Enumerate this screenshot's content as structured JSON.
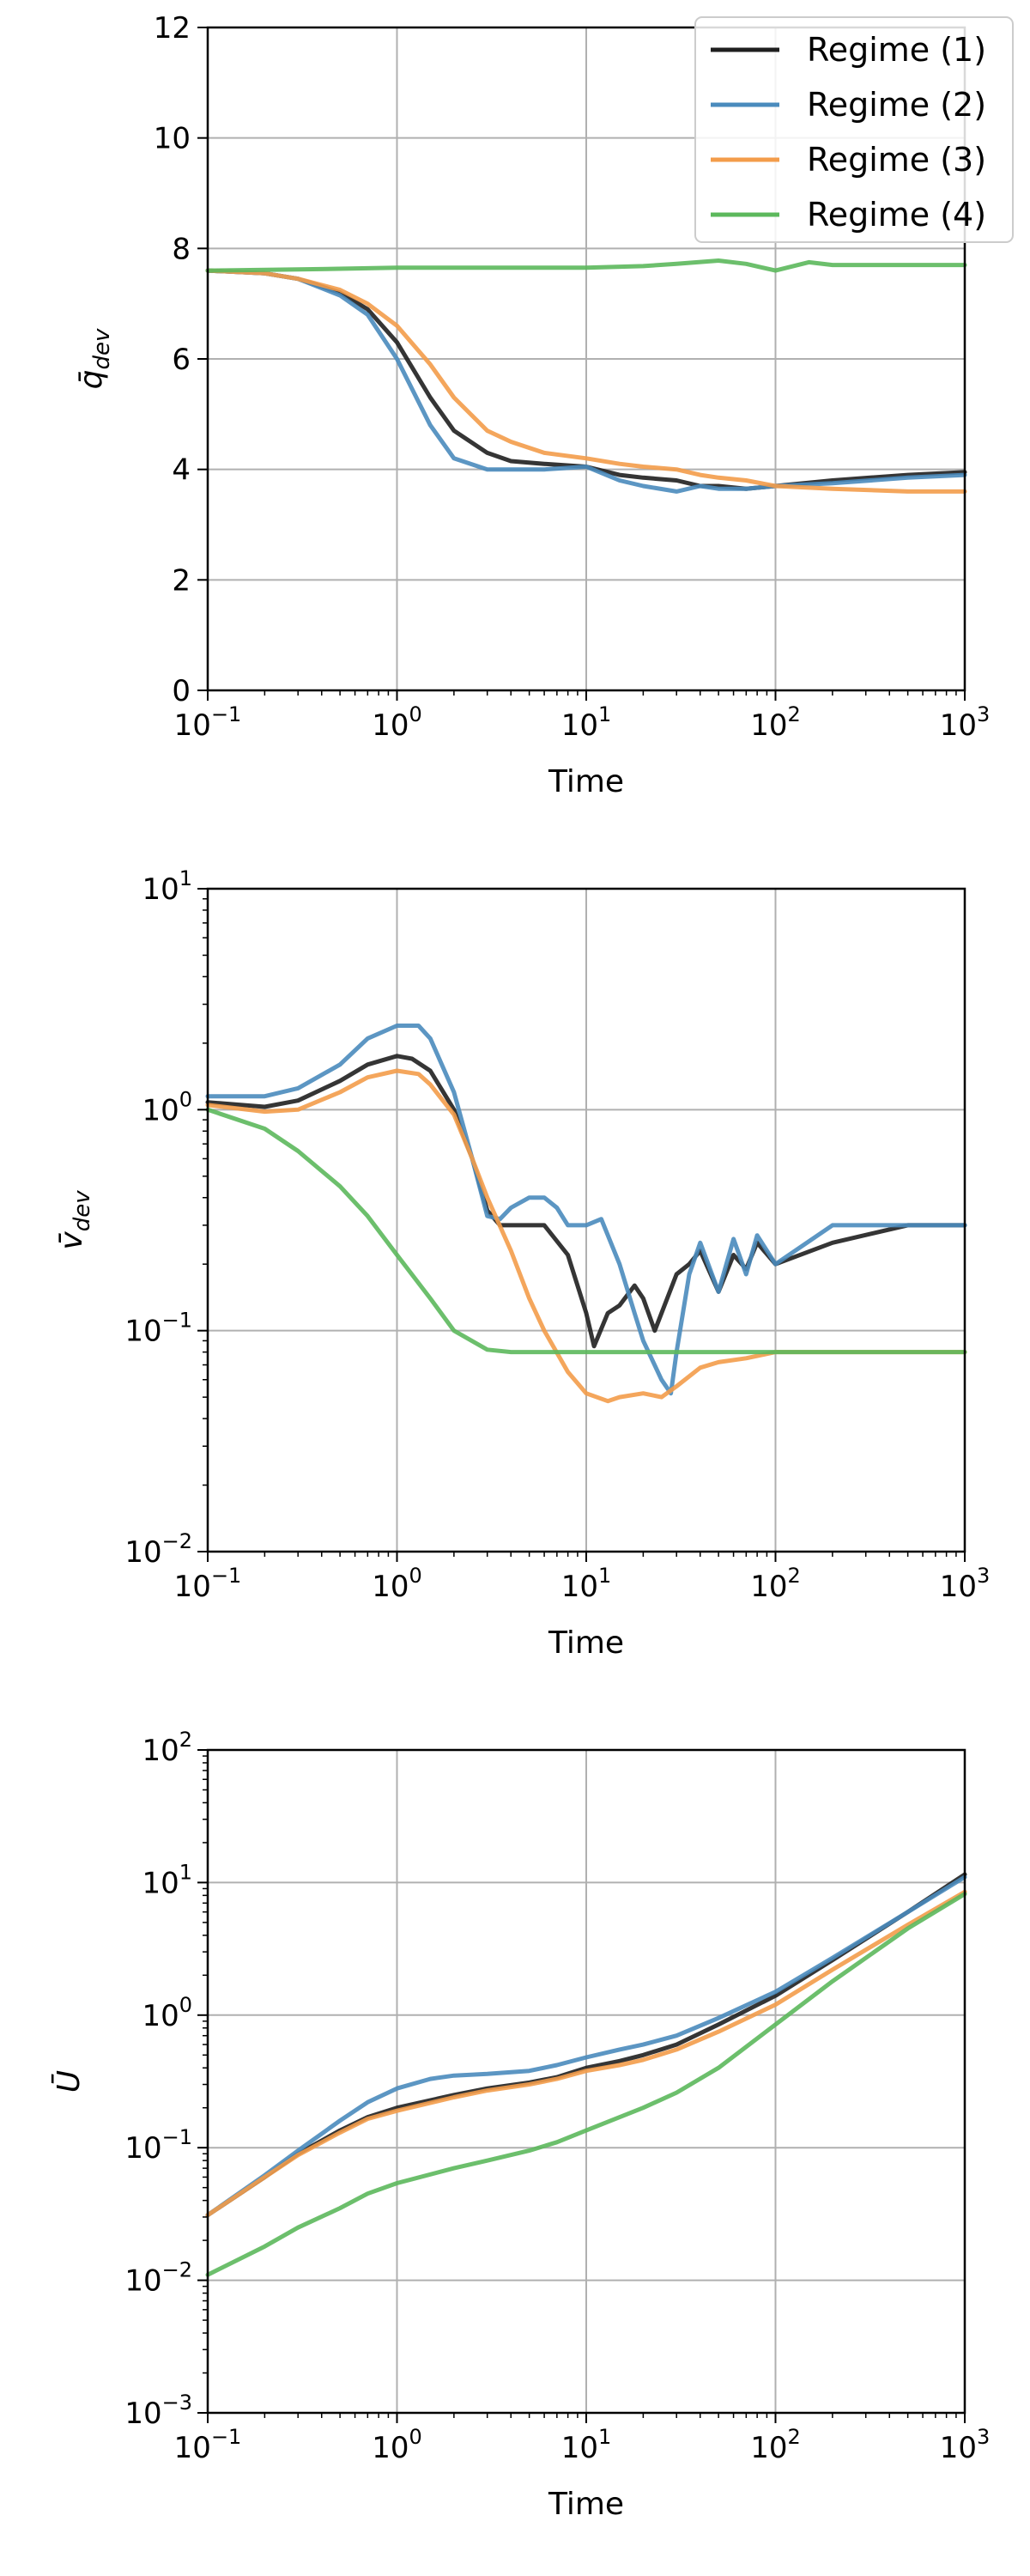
{
  "chart_data": [
    {
      "type": "line",
      "xlabel": "Time",
      "ylabel": "q̄dev",
      "ylabel_symbol": "q̄",
      "ylabel_sub": "dev",
      "x_scale": "log",
      "y_scale": "linear",
      "xlim": [
        0.1,
        1000
      ],
      "ylim": [
        0,
        12
      ],
      "x_ticks": [
        {
          "base": "10",
          "exp": "−1"
        },
        {
          "base": "10",
          "exp": "0"
        },
        {
          "base": "10",
          "exp": "1"
        },
        {
          "base": "10",
          "exp": "2"
        },
        {
          "base": "10",
          "exp": "3"
        }
      ],
      "y_ticks": [
        "0",
        "2",
        "4",
        "6",
        "8",
        "10",
        "12"
      ],
      "grid": true,
      "legend": {
        "placement": "top-right",
        "entries": [
          "Regime (1)",
          "Regime (2)",
          "Regime (3)",
          "Regime (4)"
        ]
      },
      "series": [
        {
          "name": "Regime (1)",
          "color": "#1f1f1f",
          "x": [
            0.1,
            0.2,
            0.3,
            0.5,
            0.7,
            1,
            1.5,
            2,
            3,
            4,
            6,
            10,
            15,
            20,
            30,
            40,
            50,
            70,
            100,
            200,
            500,
            1000
          ],
          "y": [
            7.6,
            7.55,
            7.45,
            7.2,
            6.9,
            6.3,
            5.3,
            4.7,
            4.3,
            4.15,
            4.1,
            4.05,
            3.9,
            3.85,
            3.8,
            3.7,
            3.7,
            3.65,
            3.7,
            3.8,
            3.9,
            3.95
          ]
        },
        {
          "name": "Regime (2)",
          "color": "#4a8bbd",
          "x": [
            0.1,
            0.2,
            0.3,
            0.5,
            0.7,
            1,
            1.5,
            2,
            3,
            4,
            6,
            10,
            15,
            20,
            30,
            40,
            50,
            70,
            100,
            200,
            500,
            1000
          ],
          "y": [
            7.6,
            7.55,
            7.45,
            7.15,
            6.8,
            6.0,
            4.8,
            4.2,
            4.0,
            4.0,
            4.0,
            4.05,
            3.8,
            3.7,
            3.6,
            3.7,
            3.65,
            3.65,
            3.7,
            3.75,
            3.85,
            3.9
          ]
        },
        {
          "name": "Regime (3)",
          "color": "#f39c4a",
          "x": [
            0.1,
            0.2,
            0.3,
            0.5,
            0.7,
            1,
            1.5,
            2,
            3,
            4,
            6,
            10,
            15,
            20,
            30,
            40,
            50,
            70,
            100,
            200,
            500,
            1000
          ],
          "y": [
            7.6,
            7.55,
            7.45,
            7.25,
            7.0,
            6.6,
            5.9,
            5.3,
            4.7,
            4.5,
            4.3,
            4.2,
            4.1,
            4.05,
            4.0,
            3.9,
            3.85,
            3.8,
            3.7,
            3.65,
            3.6,
            3.6
          ]
        },
        {
          "name": "Regime (4)",
          "color": "#5cb85c",
          "x": [
            0.1,
            0.3,
            1,
            3,
            10,
            20,
            30,
            50,
            70,
            100,
            150,
            200,
            500,
            1000
          ],
          "y": [
            7.6,
            7.62,
            7.65,
            7.65,
            7.65,
            7.68,
            7.72,
            7.78,
            7.72,
            7.6,
            7.75,
            7.7,
            7.7,
            7.7
          ]
        }
      ]
    },
    {
      "type": "line",
      "xlabel": "Time",
      "ylabel": "v̄dev",
      "ylabel_symbol": "v̄",
      "ylabel_sub": "dev",
      "x_scale": "log",
      "y_scale": "log",
      "xlim": [
        0.1,
        1000
      ],
      "ylim": [
        0.01,
        10
      ],
      "x_ticks": [
        {
          "base": "10",
          "exp": "−1"
        },
        {
          "base": "10",
          "exp": "0"
        },
        {
          "base": "10",
          "exp": "1"
        },
        {
          "base": "10",
          "exp": "2"
        },
        {
          "base": "10",
          "exp": "3"
        }
      ],
      "y_ticks": [
        {
          "base": "10",
          "exp": "−2"
        },
        {
          "base": "10",
          "exp": "−1"
        },
        {
          "base": "10",
          "exp": "0"
        },
        {
          "base": "10",
          "exp": "1"
        }
      ],
      "grid": true,
      "series": [
        {
          "name": "Regime (1)",
          "color": "#1f1f1f",
          "x": [
            0.1,
            0.2,
            0.3,
            0.5,
            0.7,
            1,
            1.2,
            1.5,
            2,
            2.5,
            3,
            3.5,
            4,
            6,
            8,
            10,
            11,
            13,
            15,
            18,
            20,
            23,
            25,
            30,
            35,
            40,
            50,
            60,
            70,
            80,
            100,
            200,
            500,
            1000
          ],
          "y": [
            1.08,
            1.03,
            1.1,
            1.35,
            1.6,
            1.75,
            1.7,
            1.5,
            1.0,
            0.6,
            0.35,
            0.3,
            0.3,
            0.3,
            0.22,
            0.12,
            0.085,
            0.12,
            0.13,
            0.16,
            0.14,
            0.1,
            0.12,
            0.18,
            0.2,
            0.23,
            0.15,
            0.22,
            0.19,
            0.25,
            0.2,
            0.25,
            0.3,
            0.3
          ]
        },
        {
          "name": "Regime (2)",
          "color": "#4a8bbd",
          "x": [
            0.1,
            0.2,
            0.3,
            0.5,
            0.7,
            1,
            1.3,
            1.5,
            2,
            2.5,
            3,
            3.5,
            4,
            5,
            6,
            7,
            8,
            10,
            12,
            15,
            18,
            20,
            25,
            28,
            30,
            35,
            40,
            50,
            60,
            70,
            80,
            100,
            200,
            500,
            1000
          ],
          "y": [
            1.15,
            1.15,
            1.25,
            1.6,
            2.1,
            2.4,
            2.4,
            2.1,
            1.2,
            0.6,
            0.33,
            0.32,
            0.36,
            0.4,
            0.4,
            0.36,
            0.3,
            0.3,
            0.32,
            0.2,
            0.12,
            0.09,
            0.06,
            0.052,
            0.08,
            0.18,
            0.25,
            0.15,
            0.26,
            0.18,
            0.27,
            0.2,
            0.3,
            0.3,
            0.3
          ]
        },
        {
          "name": "Regime (3)",
          "color": "#f39c4a",
          "x": [
            0.1,
            0.2,
            0.3,
            0.5,
            0.7,
            1,
            1.3,
            1.5,
            2,
            2.5,
            3,
            4,
            5,
            6,
            8,
            10,
            13,
            15,
            20,
            25,
            30,
            40,
            50,
            70,
            100,
            200,
            1000
          ],
          "y": [
            1.05,
            0.98,
            1.0,
            1.2,
            1.4,
            1.5,
            1.45,
            1.3,
            0.95,
            0.6,
            0.4,
            0.23,
            0.14,
            0.1,
            0.065,
            0.052,
            0.048,
            0.05,
            0.052,
            0.05,
            0.056,
            0.068,
            0.072,
            0.075,
            0.08,
            0.08,
            0.08
          ]
        },
        {
          "name": "Regime (4)",
          "color": "#5cb85c",
          "x": [
            0.1,
            0.2,
            0.3,
            0.5,
            0.7,
            1,
            1.5,
            2,
            3,
            4,
            6,
            10,
            100,
            1000
          ],
          "y": [
            1.0,
            0.82,
            0.65,
            0.45,
            0.33,
            0.22,
            0.14,
            0.1,
            0.082,
            0.08,
            0.08,
            0.08,
            0.08,
            0.08
          ]
        }
      ]
    },
    {
      "type": "line",
      "xlabel": "Time",
      "ylabel": "Ū",
      "ylabel_symbol": "Ū",
      "ylabel_sub": "",
      "x_scale": "log",
      "y_scale": "log",
      "xlim": [
        0.1,
        1000
      ],
      "ylim": [
        0.001,
        100
      ],
      "x_ticks": [
        {
          "base": "10",
          "exp": "−1"
        },
        {
          "base": "10",
          "exp": "0"
        },
        {
          "base": "10",
          "exp": "1"
        },
        {
          "base": "10",
          "exp": "2"
        },
        {
          "base": "10",
          "exp": "3"
        }
      ],
      "y_ticks": [
        {
          "base": "10",
          "exp": "−3"
        },
        {
          "base": "10",
          "exp": "−2"
        },
        {
          "base": "10",
          "exp": "−1"
        },
        {
          "base": "10",
          "exp": "0"
        },
        {
          "base": "10",
          "exp": "1"
        },
        {
          "base": "10",
          "exp": "2"
        }
      ],
      "grid": true,
      "series": [
        {
          "name": "Regime (1)",
          "color": "#1f1f1f",
          "x": [
            0.1,
            0.2,
            0.3,
            0.5,
            0.7,
            1,
            2,
            3,
            5,
            7,
            10,
            15,
            20,
            30,
            50,
            100,
            200,
            500,
            1000
          ],
          "y": [
            0.031,
            0.06,
            0.09,
            0.135,
            0.17,
            0.2,
            0.25,
            0.28,
            0.31,
            0.34,
            0.4,
            0.45,
            0.5,
            0.6,
            0.85,
            1.4,
            2.6,
            6.0,
            11.5
          ]
        },
        {
          "name": "Regime (2)",
          "color": "#4a8bbd",
          "x": [
            0.1,
            0.2,
            0.3,
            0.5,
            0.7,
            1,
            1.5,
            2,
            3,
            5,
            7,
            10,
            15,
            20,
            30,
            50,
            100,
            200,
            500,
            1000
          ],
          "y": [
            0.031,
            0.062,
            0.095,
            0.16,
            0.22,
            0.28,
            0.33,
            0.35,
            0.36,
            0.38,
            0.42,
            0.48,
            0.55,
            0.6,
            0.7,
            0.95,
            1.5,
            2.7,
            6.0,
            11.0
          ]
        },
        {
          "name": "Regime (3)",
          "color": "#f39c4a",
          "x": [
            0.1,
            0.2,
            0.3,
            0.5,
            0.7,
            1,
            2,
            3,
            5,
            7,
            10,
            15,
            20,
            30,
            50,
            100,
            200,
            500,
            1000
          ],
          "y": [
            0.031,
            0.06,
            0.088,
            0.13,
            0.165,
            0.19,
            0.24,
            0.27,
            0.3,
            0.33,
            0.38,
            0.42,
            0.46,
            0.55,
            0.75,
            1.2,
            2.2,
            4.8,
            8.5
          ]
        },
        {
          "name": "Regime (4)",
          "color": "#5cb85c",
          "x": [
            0.1,
            0.2,
            0.3,
            0.5,
            0.7,
            1,
            2,
            3,
            5,
            7,
            10,
            20,
            30,
            50,
            100,
            200,
            500,
            1000
          ],
          "y": [
            0.011,
            0.018,
            0.025,
            0.035,
            0.045,
            0.054,
            0.07,
            0.08,
            0.095,
            0.11,
            0.135,
            0.2,
            0.26,
            0.4,
            0.85,
            1.8,
            4.5,
            8.2
          ]
        }
      ]
    }
  ]
}
